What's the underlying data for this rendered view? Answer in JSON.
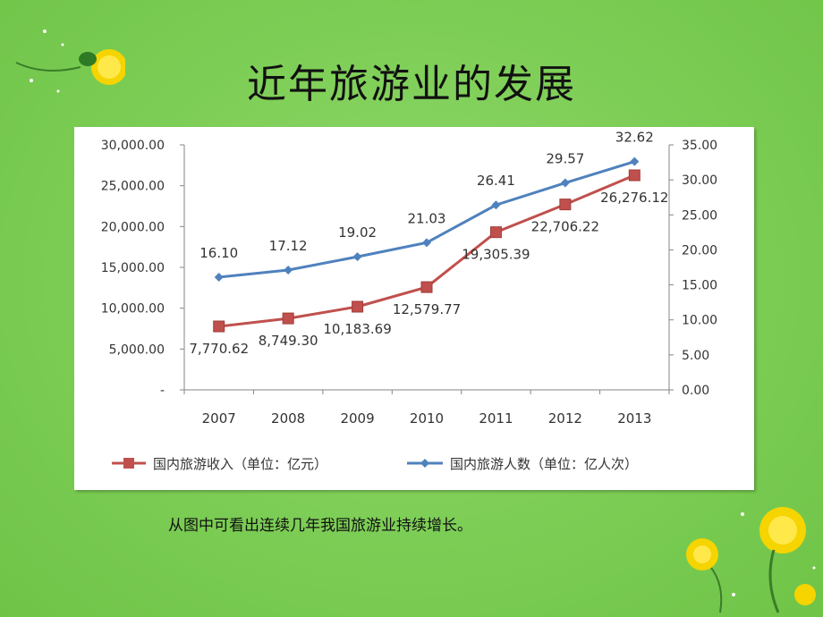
{
  "slide": {
    "title": "近年旅游业的发展",
    "caption": "从图中可看出连续几年我国旅游业持续增长。"
  },
  "colors": {
    "background": "#7ccd55",
    "income_series": "#c0504d",
    "visitors_series": "#4f81bd"
  },
  "chart_data": {
    "type": "line",
    "categories": [
      "2007",
      "2008",
      "2009",
      "2010",
      "2011",
      "2012",
      "2013"
    ],
    "y_left": {
      "ylim": [
        0,
        30000
      ],
      "ticks": [
        0,
        5000,
        10000,
        15000,
        20000,
        25000,
        30000
      ],
      "tick_labels": [
        "-",
        "5,000.00",
        "10,000.00",
        "15,000.00",
        "20,000.00",
        "25,000.00",
        "30,000.00"
      ]
    },
    "y_right": {
      "ylim": [
        0,
        35
      ],
      "ticks": [
        0,
        5,
        10,
        15,
        20,
        25,
        30,
        35
      ],
      "tick_labels": [
        "0.00",
        "5.00",
        "10.00",
        "15.00",
        "20.00",
        "25.00",
        "30.00",
        "35.00"
      ]
    },
    "series": [
      {
        "name": "国内旅游收入（单位：亿元）",
        "axis": "left",
        "marker": "square",
        "color": "#c0504d",
        "values": [
          7770.62,
          8749.3,
          10183.69,
          12579.77,
          19305.39,
          22706.22,
          26276.12
        ],
        "labels": [
          "7,770.62",
          "8,749.30",
          "10,183.69",
          "12,579.77",
          "19,305.39",
          "22,706.22",
          "26,276.12"
        ]
      },
      {
        "name": "国内旅游人数（单位：亿人次）",
        "axis": "right",
        "marker": "diamond",
        "color": "#4f81bd",
        "values": [
          16.1,
          17.12,
          19.02,
          21.03,
          26.41,
          29.57,
          32.62
        ],
        "labels": [
          "16.10",
          "17.12",
          "19.02",
          "21.03",
          "26.41",
          "29.57",
          "32.62"
        ]
      }
    ],
    "grid": false,
    "legend_position": "bottom"
  }
}
